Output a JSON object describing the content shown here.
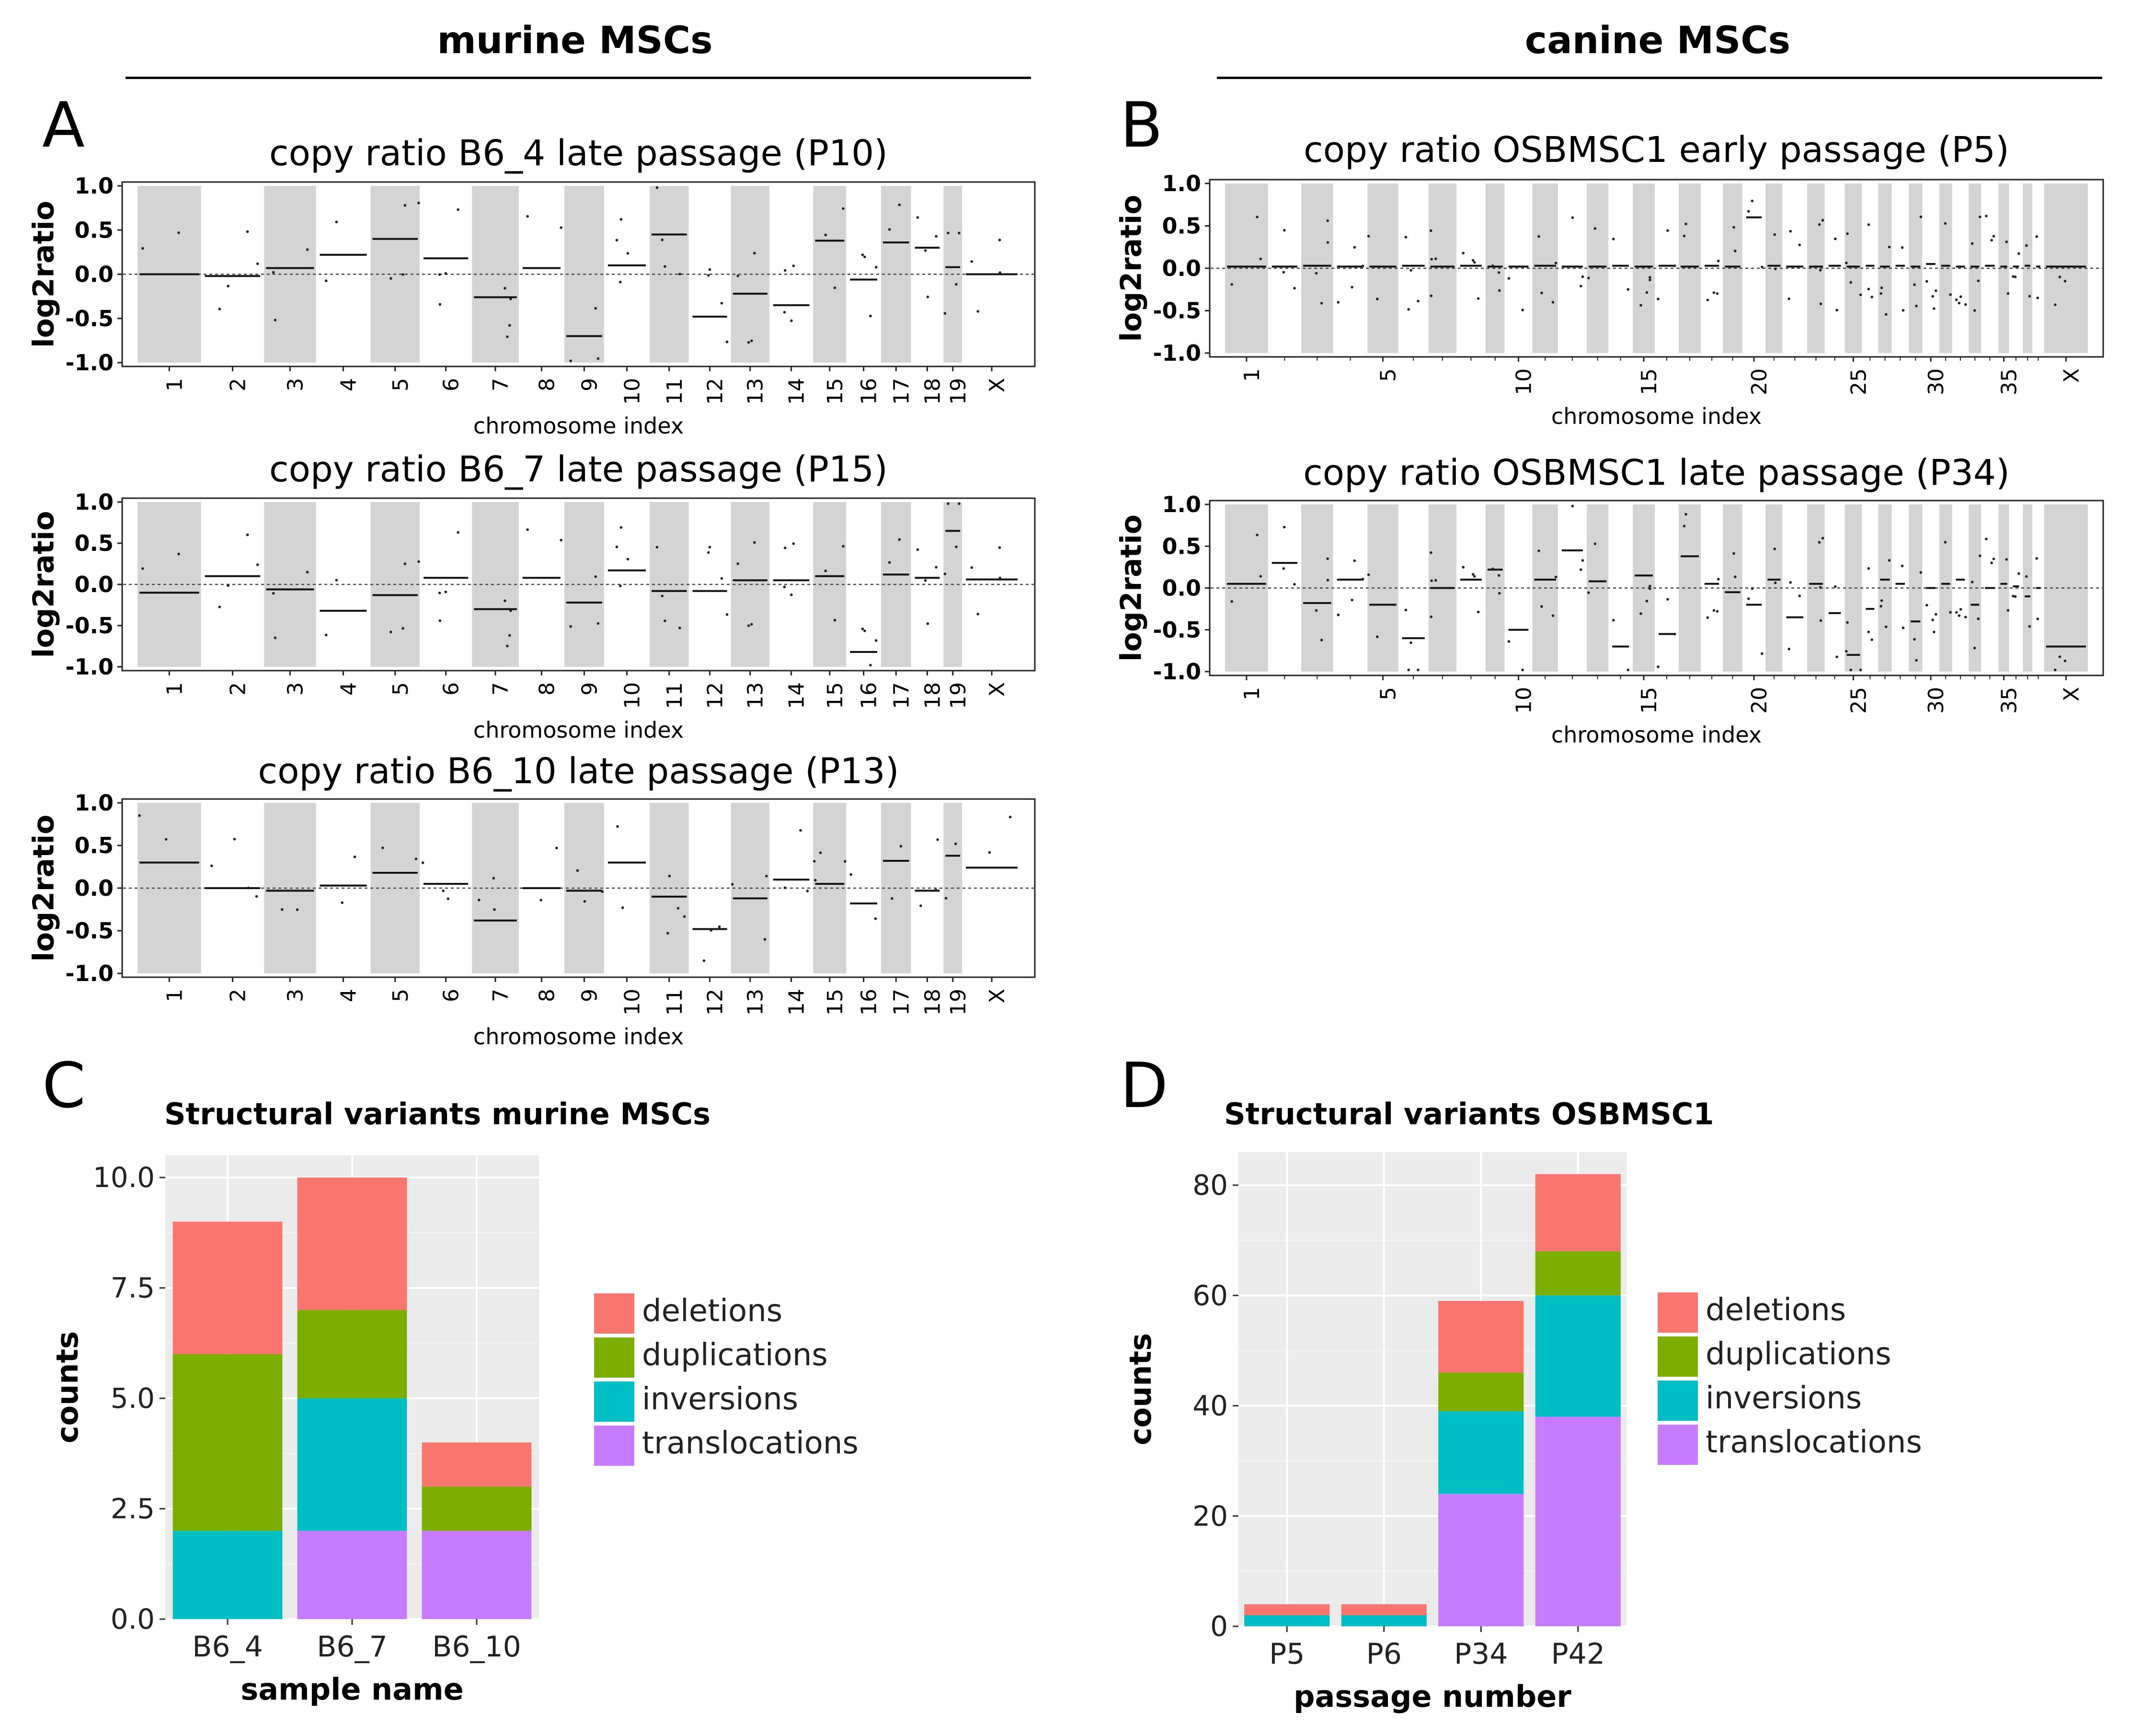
{
  "headers": {
    "left": "murine MSCs",
    "right": "canine MSCs"
  },
  "panel_letters": [
    "A",
    "B",
    "C",
    "D"
  ],
  "chart_data": [
    {
      "id": "A1",
      "type": "scatter",
      "title": "copy ratio B6_4 late passage (P10)",
      "xlabel": "chromosome index",
      "ylabel": "log2ratio",
      "ylim": [
        -1.0,
        1.0
      ],
      "ytick_labels": [
        "1.0",
        "0.5",
        "0.0",
        "-0.5",
        "-1.0"
      ],
      "chromosomes": [
        "1",
        "2",
        "3",
        "4",
        "5",
        "6",
        "7",
        "8",
        "9",
        "10",
        "11",
        "12",
        "13",
        "14",
        "15",
        "16",
        "17",
        "18",
        "19",
        "X"
      ],
      "segments": [
        0.0,
        -0.02,
        0.07,
        0.22,
        0.4,
        0.18,
        -0.26,
        0.07,
        -0.7,
        0.1,
        0.45,
        -0.48,
        -0.22,
        -0.35,
        0.38,
        -0.06,
        0.36,
        0.3,
        0.08,
        0.0
      ]
    },
    {
      "id": "A2",
      "type": "scatter",
      "title": "copy ratio B6_7 late passage (P15)",
      "xlabel": "chromosome index",
      "ylabel": "log2ratio",
      "ylim": [
        -1.0,
        1.0
      ],
      "ytick_labels": [
        "1.0",
        "0.5",
        "0.0",
        "-0.5",
        "-1.0"
      ],
      "chromosomes": [
        "1",
        "2",
        "3",
        "4",
        "5",
        "6",
        "7",
        "8",
        "9",
        "10",
        "11",
        "12",
        "13",
        "14",
        "15",
        "16",
        "17",
        "18",
        "19",
        "X"
      ],
      "segments": [
        -0.1,
        0.1,
        -0.06,
        -0.32,
        -0.13,
        0.08,
        -0.3,
        0.08,
        -0.22,
        0.17,
        -0.08,
        -0.08,
        0.05,
        0.05,
        0.1,
        -0.82,
        0.12,
        0.08,
        0.65,
        0.06
      ]
    },
    {
      "id": "A3",
      "type": "scatter",
      "title": "copy ratio B6_10 late passage (P13)",
      "xlabel": "chromosome index",
      "ylabel": "log2ratio",
      "ylim": [
        -1.0,
        1.0
      ],
      "ytick_labels": [
        "1.0",
        "0.5",
        "0.0",
        "-0.5",
        "-1.0"
      ],
      "chromosomes": [
        "1",
        "2",
        "3",
        "4",
        "5",
        "6",
        "7",
        "8",
        "9",
        "10",
        "11",
        "12",
        "13",
        "14",
        "15",
        "16",
        "17",
        "18",
        "19",
        "X"
      ],
      "segments": [
        0.3,
        0.0,
        -0.03,
        0.03,
        0.18,
        0.05,
        -0.38,
        0.0,
        -0.03,
        0.3,
        -0.1,
        -0.48,
        -0.12,
        0.1,
        0.05,
        -0.18,
        0.32,
        -0.03,
        0.38,
        0.24
      ]
    },
    {
      "id": "B1",
      "type": "scatter",
      "title": "copy ratio OSBMSC1 early passage (P5)",
      "xlabel": "chromosome index",
      "ylabel": "log2ratio",
      "ylim": [
        -1.0,
        1.0
      ],
      "ytick_labels": [
        "1.0",
        "0.5",
        "0.0",
        "-0.5",
        "-1.0"
      ],
      "tick_labels": [
        "1",
        "5",
        "10",
        "15",
        "20",
        "25",
        "30",
        "35",
        "X"
      ],
      "segments": [
        0.02,
        0.02,
        0.03,
        0.02,
        0.02,
        0.03,
        0.02,
        0.03,
        0.02,
        0.02,
        0.03,
        0.02,
        0.02,
        0.03,
        0.02,
        0.03,
        0.02,
        0.03,
        0.02,
        0.6,
        0.03,
        0.02,
        0.02,
        0.03,
        0.02,
        0.03,
        0.02,
        0.03,
        0.02,
        0.05,
        0.03,
        0.02,
        0.02,
        0.03,
        0.02,
        0.02,
        0.03,
        0.02,
        0.02
      ]
    },
    {
      "id": "B2",
      "type": "scatter",
      "title": "copy ratio OSBMSC1 late passage (P34)",
      "xlabel": "chromosome index",
      "ylabel": "log2ratio",
      "ylim": [
        -1.0,
        1.0
      ],
      "ytick_labels": [
        "1.0",
        "0.5",
        "0.0",
        "-0.5",
        "-1.0"
      ],
      "tick_labels": [
        "1",
        "5",
        "10",
        "15",
        "20",
        "25",
        "30",
        "35",
        "X"
      ],
      "segments": [
        0.05,
        0.3,
        -0.18,
        0.1,
        -0.2,
        -0.6,
        0.0,
        0.1,
        0.22,
        -0.5,
        0.1,
        0.45,
        0.08,
        -0.7,
        0.15,
        -0.55,
        0.38,
        0.05,
        -0.05,
        -0.2,
        0.1,
        -0.35,
        0.05,
        -0.3,
        -0.8,
        -0.25,
        0.1,
        0.05,
        -0.4,
        0.0,
        0.05,
        0.1,
        -0.2,
        0.0,
        0.05,
        0.02,
        -0.1,
        0.0,
        -0.7
      ]
    },
    {
      "id": "C",
      "type": "bar",
      "stacked": true,
      "title": "Structural variants murine MSCs",
      "xlabel": "sample name",
      "ylabel": "counts",
      "ylim": [
        0,
        10.5
      ],
      "ytick_labels": [
        "0.0",
        "2.5",
        "5.0",
        "7.5",
        "10.0"
      ],
      "categories": [
        "B6_4",
        "B6_7",
        "B6_10"
      ],
      "series": [
        {
          "name": "translocations",
          "color": "#C77CFF",
          "values": [
            0,
            2,
            2
          ]
        },
        {
          "name": "inversions",
          "color": "#00BFC4",
          "values": [
            2,
            3,
            0
          ]
        },
        {
          "name": "duplications",
          "color": "#7CAE00",
          "values": [
            4,
            2,
            1
          ]
        },
        {
          "name": "deletions",
          "color": "#F8766D",
          "values": [
            3,
            3,
            1
          ]
        }
      ],
      "legend_order": [
        "deletions",
        "duplications",
        "inversions",
        "translocations"
      ]
    },
    {
      "id": "D",
      "type": "bar",
      "stacked": true,
      "title": "Structural variants OSBMSC1",
      "xlabel": "passage number",
      "ylabel": "counts",
      "ylim": [
        0,
        86
      ],
      "ytick_labels": [
        "0",
        "20",
        "40",
        "60",
        "80"
      ],
      "categories": [
        "P5",
        "P6",
        "P34",
        "P42"
      ],
      "series": [
        {
          "name": "translocations",
          "color": "#C77CFF",
          "values": [
            0,
            0,
            24,
            38
          ]
        },
        {
          "name": "inversions",
          "color": "#00BFC4",
          "values": [
            2,
            2,
            15,
            22
          ]
        },
        {
          "name": "duplications",
          "color": "#7CAE00",
          "values": [
            0,
            0,
            7,
            8
          ]
        },
        {
          "name": "deletions",
          "color": "#F8766D",
          "values": [
            2,
            2,
            13,
            14
          ]
        }
      ],
      "legend_order": [
        "deletions",
        "duplications",
        "inversions",
        "translocations"
      ]
    }
  ]
}
